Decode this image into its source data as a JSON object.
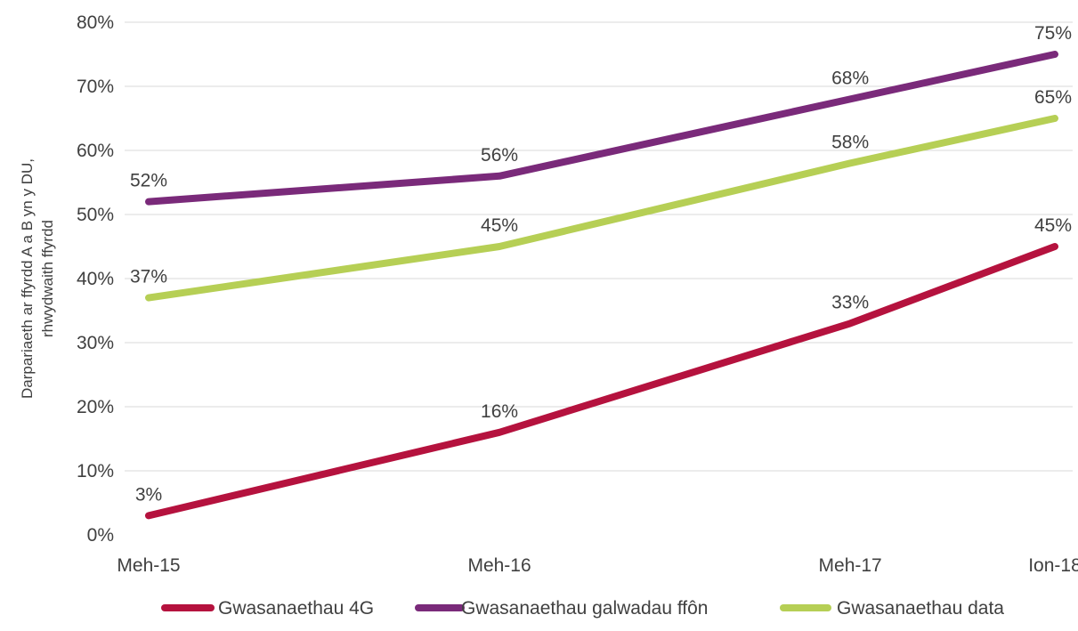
{
  "chart_data": {
    "type": "line",
    "title": "",
    "xlabel": "",
    "ylabel": "Darpariaeth ar ffyrdd A a B yn y DU, rhwydwaith ffyrdd",
    "ylabel_lines": [
      "Darpariaeth ar ffyrdd A a B yn y DU,",
      "rhwydwaith ffyrdd"
    ],
    "x_dates": [
      "2015-06",
      "2016-06",
      "2017-06",
      "2018-01"
    ],
    "categories": [
      "Meh-15",
      "Meh-16",
      "Meh-17",
      "Ion-18"
    ],
    "ylim": [
      0,
      80
    ],
    "y_ticks": [
      0,
      10,
      20,
      30,
      40,
      50,
      60,
      70,
      80
    ],
    "y_tick_suffix": "%",
    "grid": true,
    "legend_position": "bottom",
    "series": [
      {
        "name": "Gwasanaethau 4G",
        "color": "#b5123e",
        "values": [
          3,
          16,
          33,
          45
        ],
        "labels": [
          "3%",
          "16%",
          "33%",
          "45%"
        ]
      },
      {
        "name": "Gwasanaethau galwadau ffôn",
        "color": "#7a2a7a",
        "values": [
          52,
          56,
          68,
          75
        ],
        "labels": [
          "52%",
          "56%",
          "68%",
          "75%"
        ]
      },
      {
        "name": "Gwasanaethau data",
        "color": "#b6cf55",
        "values": [
          37,
          45,
          58,
          65
        ],
        "labels": [
          "37%",
          "45%",
          "58%",
          "65%"
        ]
      }
    ]
  }
}
